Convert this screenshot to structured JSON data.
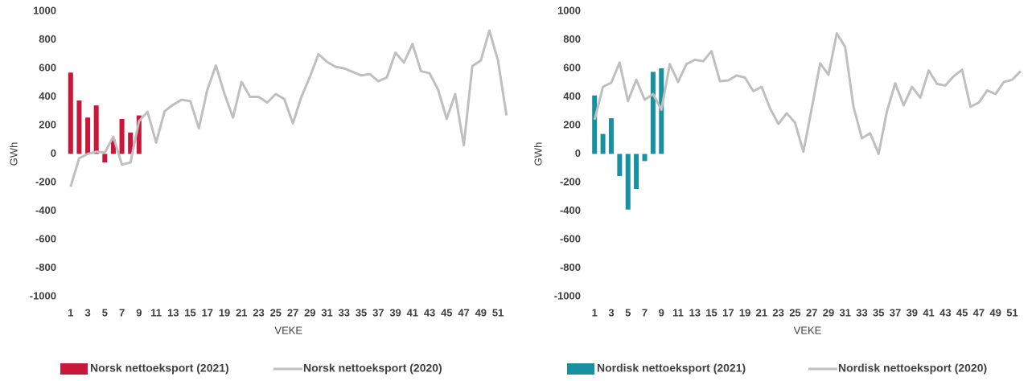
{
  "chart_data": [
    {
      "type": "bar",
      "x_label": "VEKE",
      "y_label": "GWh",
      "categories": [
        "1",
        null,
        "3",
        null,
        "5",
        null,
        "7",
        null,
        "9",
        null,
        "11",
        null,
        "13",
        null,
        "15",
        null,
        "17",
        null,
        "19",
        null,
        "21",
        null,
        "23",
        null,
        "25",
        null,
        "27",
        null,
        "29",
        null,
        "31",
        null,
        "33",
        null,
        "35",
        null,
        "37",
        null,
        "39",
        null,
        "41",
        null,
        "43",
        null,
        "45",
        null,
        "47",
        null,
        "49",
        null,
        "51",
        null
      ],
      "ylim": [
        -1000,
        1000
      ],
      "yticks": [
        -1000,
        -800,
        -600,
        -400,
        -200,
        0,
        200,
        400,
        600,
        800,
        1000
      ],
      "series": [
        {
          "name": "Norsk nettoeksport (2021)",
          "type": "bar",
          "color": "#c8173a",
          "values": [
            570,
            375,
            255,
            340,
            -60,
            100,
            245,
            150,
            270,
            null,
            null,
            null,
            null,
            null,
            null,
            null,
            null,
            null,
            null,
            null,
            null,
            null,
            null,
            null,
            null,
            null,
            null,
            null,
            null,
            null,
            null,
            null,
            null,
            null,
            null,
            null,
            null,
            null,
            null,
            null,
            null,
            null,
            null,
            null,
            null,
            null,
            null,
            null,
            null,
            null,
            null,
            null
          ]
        },
        {
          "name": "Norsk nettoeksport (2020)",
          "type": "line",
          "color": "#bfbfbf",
          "values": [
            -230,
            -30,
            0,
            15,
            10,
            120,
            -75,
            -60,
            230,
            295,
            80,
            300,
            345,
            380,
            370,
            180,
            450,
            620,
            420,
            255,
            505,
            400,
            400,
            360,
            420,
            385,
            215,
            400,
            540,
            700,
            645,
            610,
            600,
            575,
            550,
            560,
            510,
            535,
            710,
            640,
            770,
            580,
            565,
            450,
            245,
            420,
            60,
            615,
            655,
            865,
            655,
            270
          ]
        }
      ]
    },
    {
      "type": "bar",
      "x_label": "VEKE",
      "y_label": "GWh",
      "categories": [
        "1",
        null,
        "3",
        null,
        "5",
        null,
        "7",
        null,
        "9",
        null,
        "11",
        null,
        "13",
        null,
        "15",
        null,
        "17",
        null,
        "19",
        null,
        "21",
        null,
        "23",
        null,
        "25",
        null,
        "27",
        null,
        "29",
        null,
        "31",
        null,
        "33",
        null,
        "35",
        null,
        "37",
        null,
        "39",
        null,
        "41",
        null,
        "43",
        null,
        "45",
        null,
        "47",
        null,
        "49",
        null,
        "51",
        null
      ],
      "ylim": [
        -1000,
        1000
      ],
      "yticks": [
        -1000,
        -800,
        -600,
        -400,
        -200,
        0,
        200,
        400,
        600,
        800,
        1000
      ],
      "series": [
        {
          "name": "Nordisk nettoeksport (2021)",
          "type": "bar",
          "color": "#17909f",
          "values": [
            410,
            140,
            250,
            -155,
            -390,
            -245,
            -50,
            575,
            600,
            null,
            null,
            null,
            null,
            null,
            null,
            null,
            null,
            null,
            null,
            null,
            null,
            null,
            null,
            null,
            null,
            null,
            null,
            null,
            null,
            null,
            null,
            null,
            null,
            null,
            null,
            null,
            null,
            null,
            null,
            null,
            null,
            null,
            null,
            null,
            null,
            null,
            null,
            null,
            null,
            null,
            null,
            null
          ]
        },
        {
          "name": "Nordisk nettoeksport (2020)",
          "type": "line",
          "color": "#bfbfbf",
          "values": [
            240,
            470,
            500,
            640,
            370,
            520,
            380,
            420,
            310,
            630,
            505,
            630,
            660,
            650,
            720,
            510,
            515,
            550,
            535,
            440,
            470,
            320,
            210,
            285,
            220,
            15,
            320,
            635,
            555,
            845,
            750,
            330,
            110,
            145,
            0,
            300,
            495,
            340,
            470,
            395,
            585,
            490,
            480,
            545,
            590,
            330,
            360,
            445,
            420,
            505,
            520,
            580
          ]
        }
      ]
    }
  ]
}
